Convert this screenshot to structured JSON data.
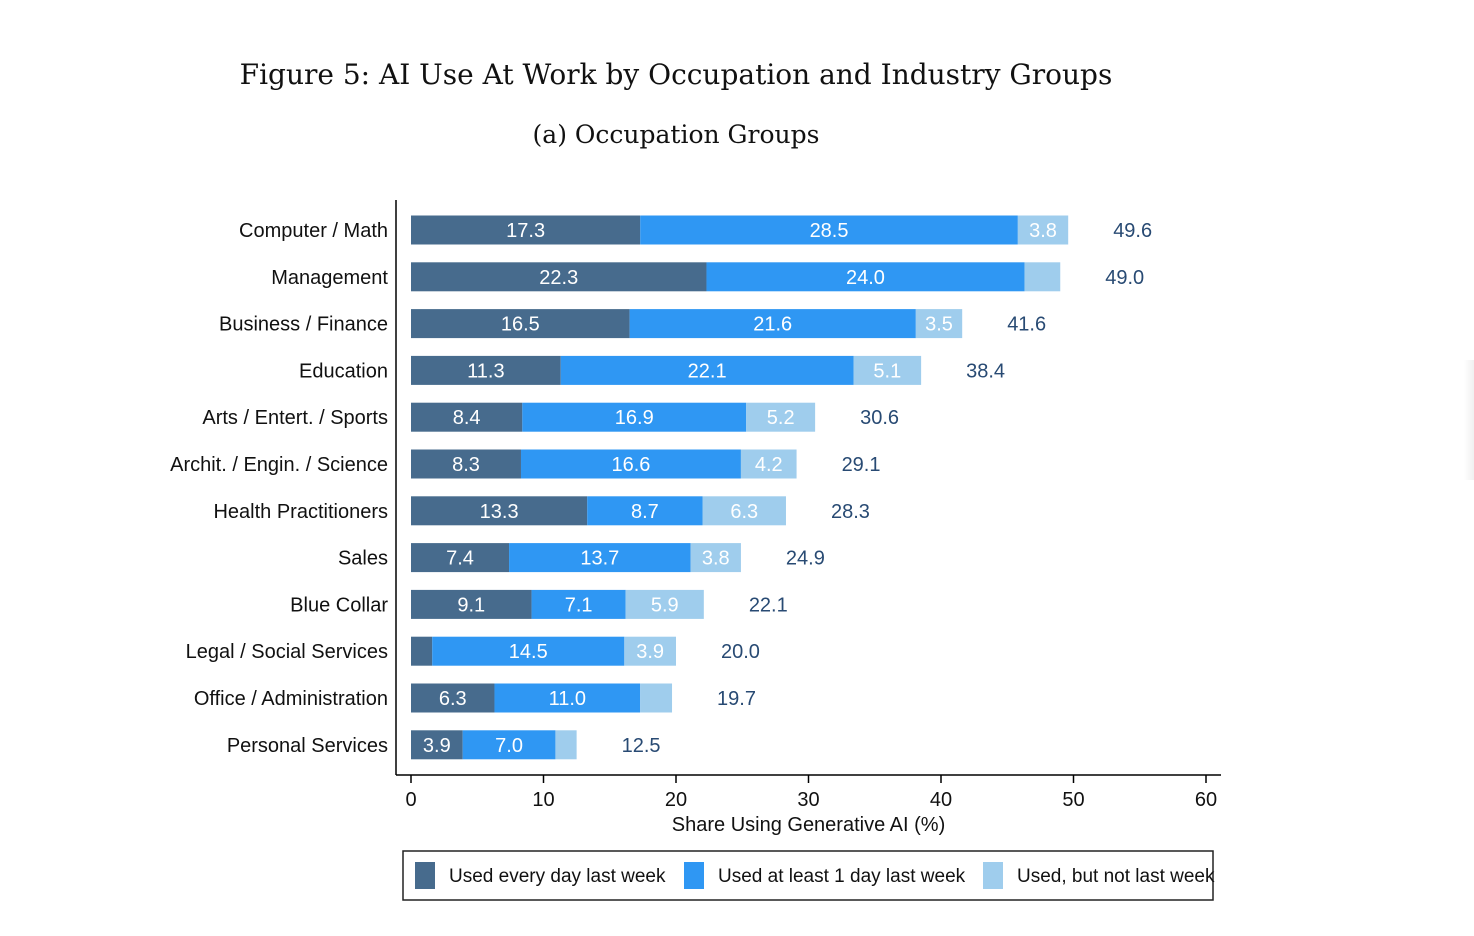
{
  "figure": {
    "title": "Figure 5: AI Use At Work by Occupation and Industry Groups",
    "subtitle": "(a) Occupation Groups"
  },
  "colors": {
    "every_day": "#476b8d",
    "at_least_one_day": "#2f97f3",
    "not_last_week": "#9fcded",
    "total_label": "#284a73",
    "axis": "#000000"
  },
  "chart_data": {
    "type": "bar",
    "orientation": "horizontal",
    "stacked": true,
    "categories": [
      "Computer / Math",
      "Management",
      "Business / Finance",
      "Education",
      "Arts / Entert. / Sports",
      "Archit. / Engin. / Science",
      "Health Practitioners",
      "Sales",
      "Blue Collar",
      "Legal / Social Services",
      "Office / Administration",
      "Personal Services"
    ],
    "series": [
      {
        "name": "Used every day last week",
        "color": "#476b8d",
        "values": [
          17.3,
          22.3,
          16.5,
          11.3,
          8.4,
          8.3,
          13.3,
          7.4,
          9.1,
          1.6,
          6.3,
          3.9
        ],
        "labels": [
          "17.3",
          "22.3",
          "16.5",
          "11.3",
          "8.4",
          "8.3",
          "13.3",
          "7.4",
          "9.1",
          "",
          "6.3",
          "3.9"
        ]
      },
      {
        "name": "Used at least 1 day last week",
        "color": "#2f97f3",
        "values": [
          28.5,
          24.0,
          21.6,
          22.1,
          16.9,
          16.6,
          8.7,
          13.7,
          7.1,
          14.5,
          11.0,
          7.0
        ],
        "labels": [
          "28.5",
          "24.0",
          "21.6",
          "22.1",
          "16.9",
          "16.6",
          "8.7",
          "13.7",
          "7.1",
          "14.5",
          "11.0",
          "7.0"
        ]
      },
      {
        "name": "Used, but not last week",
        "color": "#9fcded",
        "values": [
          3.8,
          2.7,
          3.5,
          5.1,
          5.2,
          4.2,
          6.3,
          3.8,
          5.9,
          3.9,
          2.4,
          1.6
        ],
        "labels": [
          "3.8",
          "",
          "3.5",
          "5.1",
          "5.2",
          "4.2",
          "6.3",
          "3.8",
          "5.9",
          "3.9",
          "",
          ""
        ]
      }
    ],
    "totals": [
      49.6,
      49.0,
      41.6,
      38.4,
      30.6,
      29.1,
      28.3,
      24.9,
      22.1,
      20.0,
      19.7,
      12.5
    ],
    "total_labels": [
      "49.6",
      "49.0",
      "41.6",
      "38.4",
      "30.6",
      "29.1",
      "28.3",
      "24.9",
      "22.1",
      "20.0",
      "19.7",
      "12.5"
    ],
    "xlabel": "Share Using Generative AI (%)",
    "ylabel": "",
    "xlim": [
      0,
      60
    ],
    "xticks": [
      "0",
      "10",
      "20",
      "30",
      "40",
      "50",
      "60"
    ],
    "grid": false,
    "legend": "bottom"
  }
}
